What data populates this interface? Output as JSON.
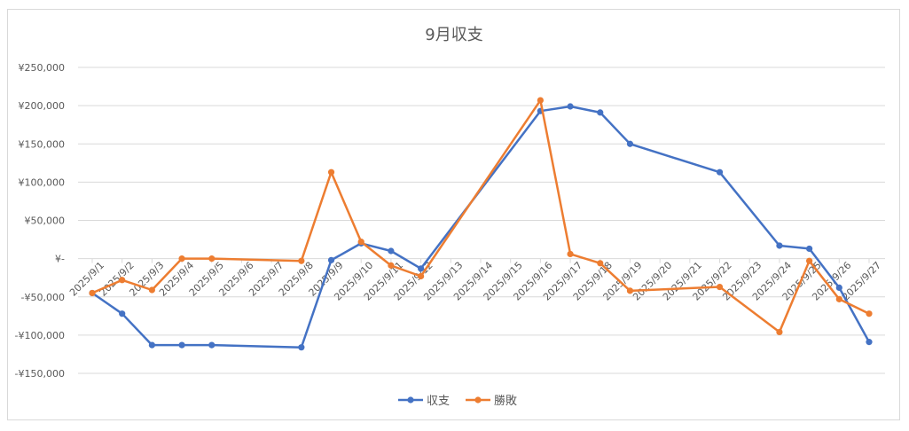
{
  "chart_data": {
    "type": "line",
    "title": "9月収支",
    "categories": [
      "2025/9/1",
      "2025/9/2",
      "2025/9/3",
      "2025/9/4",
      "2025/9/5",
      "2025/9/6",
      "2025/9/7",
      "2025/9/8",
      "2025/9/9",
      "2025/9/10",
      "2025/9/11",
      "2025/9/12",
      "2025/9/13",
      "2025/9/14",
      "2025/9/15",
      "2025/9/16",
      "2025/9/17",
      "2025/9/18",
      "2025/9/19",
      "2025/9/20",
      "2025/9/21",
      "2025/9/22",
      "2025/9/23",
      "2025/9/24",
      "2025/9/25",
      "2025/9/26",
      "2025/9/27"
    ],
    "series": [
      {
        "name": "収支",
        "color": "#4472c4",
        "points": [
          [
            0,
            -45000
          ],
          [
            1,
            -72000
          ],
          [
            2,
            -113000
          ],
          [
            3,
            -113000
          ],
          [
            4,
            -113000
          ],
          [
            7,
            -116000
          ],
          [
            8,
            -2000
          ],
          [
            9,
            20000
          ],
          [
            10,
            10000
          ],
          [
            11,
            -13000
          ],
          [
            15,
            193000
          ],
          [
            16,
            199000
          ],
          [
            17,
            191000
          ],
          [
            18,
            150000
          ],
          [
            21,
            113000
          ],
          [
            23,
            17000
          ],
          [
            24,
            13000
          ],
          [
            25,
            -38000
          ],
          [
            26,
            -109000
          ]
        ]
      },
      {
        "name": "勝敗",
        "color": "#ed7d31",
        "points": [
          [
            0,
            -45000
          ],
          [
            1,
            -28000
          ],
          [
            2,
            -41000
          ],
          [
            3,
            0
          ],
          [
            4,
            0
          ],
          [
            7,
            -3000
          ],
          [
            8,
            113000
          ],
          [
            9,
            22000
          ],
          [
            10,
            -9000
          ],
          [
            11,
            -23000
          ],
          [
            15,
            207000
          ],
          [
            16,
            6000
          ],
          [
            17,
            -6000
          ],
          [
            18,
            -42000
          ],
          [
            21,
            -37000
          ],
          [
            23,
            -96000
          ],
          [
            24,
            -3000
          ],
          [
            25,
            -53000
          ],
          [
            26,
            -72000
          ]
        ]
      }
    ],
    "yticks": [
      250000,
      200000,
      150000,
      100000,
      50000,
      0,
      -50000,
      -100000,
      -150000
    ],
    "ytick_labels": [
      "¥250,000",
      "¥200,000",
      "¥150,000",
      "¥100,000",
      "¥50,000",
      "¥-",
      "-¥50,000",
      "-¥100,000",
      "-¥150,000"
    ],
    "ylim": [
      -150000,
      250000
    ],
    "grid": true,
    "legend_position": "bottom"
  }
}
